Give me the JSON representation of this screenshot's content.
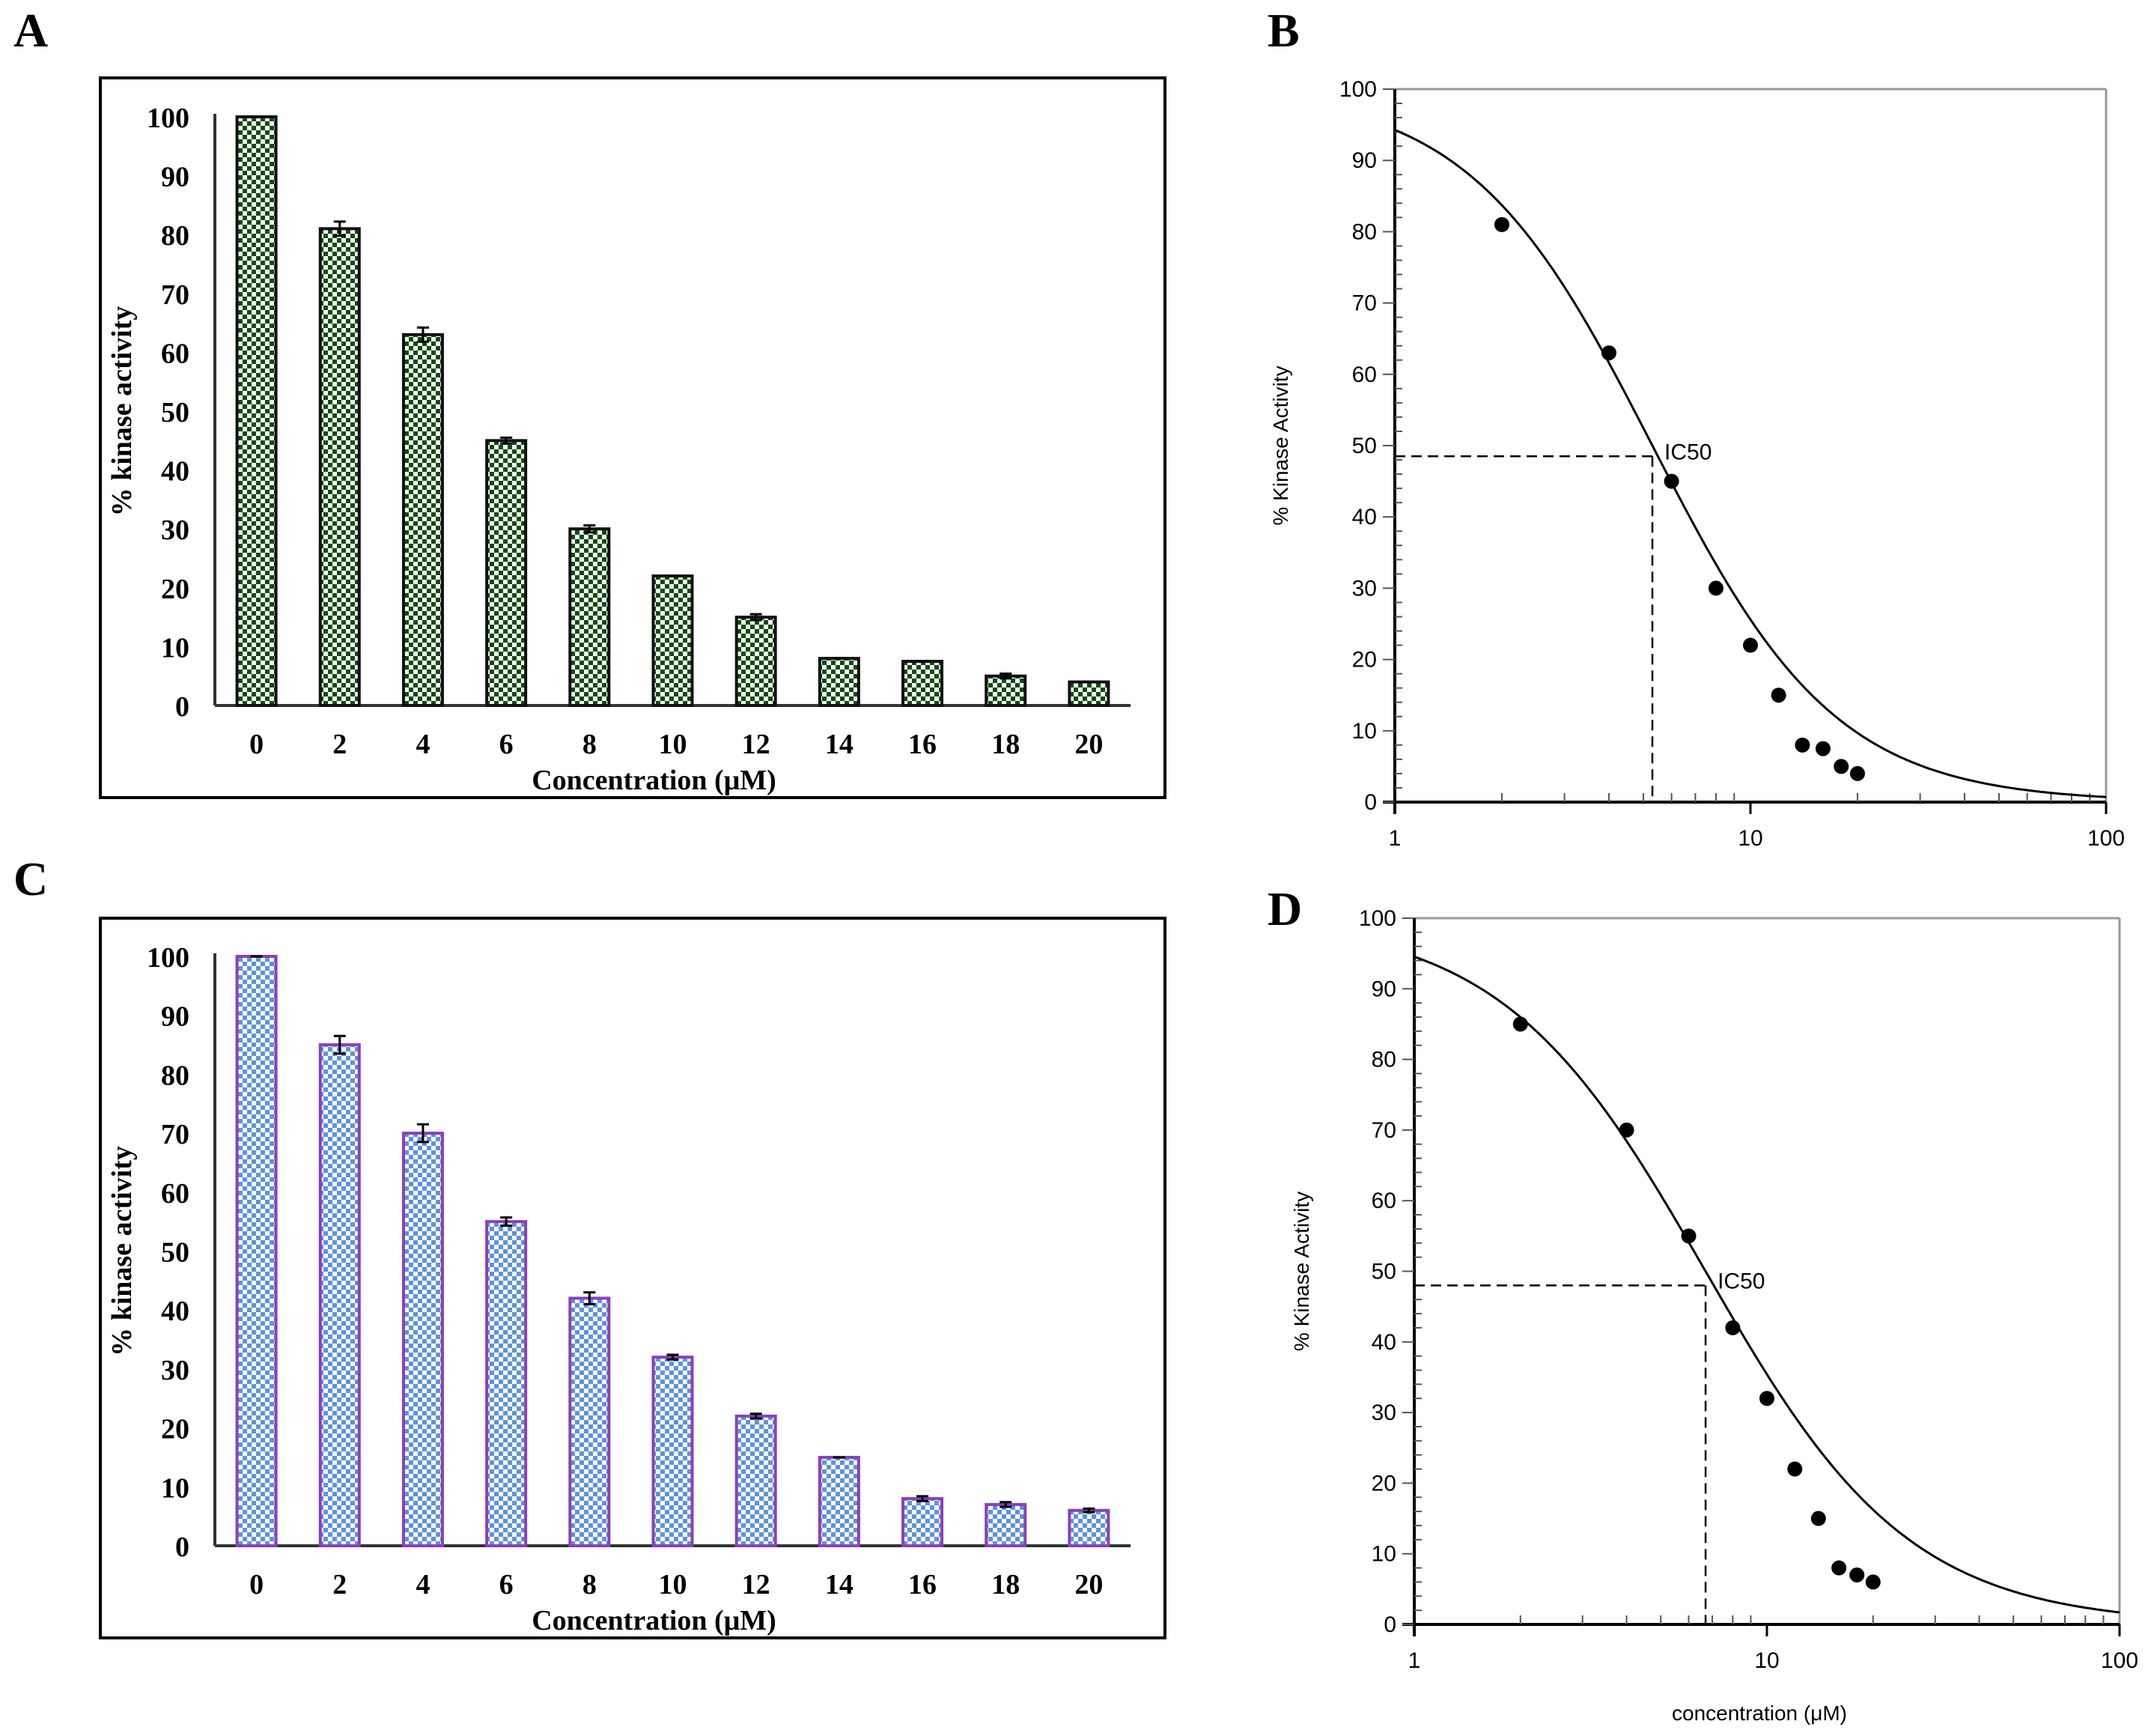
{
  "panel_labels": [
    "A",
    "B",
    "C",
    "D"
  ],
  "chart_data": [
    {
      "panel": "A",
      "type": "bar",
      "categories": [
        "0",
        "2",
        "4",
        "6",
        "8",
        "10",
        "12",
        "14",
        "16",
        "18",
        "20"
      ],
      "values": [
        100,
        81,
        63,
        45,
        30,
        22,
        15,
        8,
        7.5,
        5,
        4
      ],
      "errors": [
        0,
        1.2,
        1.2,
        0.5,
        0.6,
        0,
        0.5,
        0,
        0,
        0.4,
        0
      ],
      "xlabel": "Concentration  (μM)",
      "ylabel": "% kinase activity",
      "ylim": [
        0,
        100
      ],
      "yticks": [
        "0",
        "10",
        "20",
        "30",
        "40",
        "50",
        "60",
        "70",
        "80",
        "90",
        "100"
      ],
      "colors": {
        "fill": "#0b4d0b",
        "bg": "#ffffff",
        "border": "#111111"
      }
    },
    {
      "panel": "B",
      "type": "scatter",
      "x": [
        2,
        4,
        6,
        8,
        10,
        12,
        14,
        16,
        18,
        20
      ],
      "y": [
        81,
        63,
        45,
        30,
        22,
        15,
        8,
        7.5,
        5,
        4
      ],
      "fit": {
        "top": 100,
        "bottom": 0,
        "ic50": 5.3,
        "hill": 1.68
      },
      "ic50_marker": {
        "x": 5.3,
        "y": 48.5,
        "label": "IC50"
      },
      "xscale": "log",
      "xlim": [
        1,
        100
      ],
      "xticks": [
        "1",
        "10",
        "100"
      ],
      "ylim": [
        0,
        100
      ],
      "yticks": [
        "0",
        "10",
        "20",
        "30",
        "40",
        "50",
        "60",
        "70",
        "80",
        "90",
        "100"
      ],
      "xlabel": "",
      "ylabel": "% Kinase Activity"
    },
    {
      "panel": "C",
      "type": "bar",
      "categories": [
        "0",
        "2",
        "4",
        "6",
        "8",
        "10",
        "12",
        "14",
        "16",
        "18",
        "20"
      ],
      "values": [
        100,
        85,
        70,
        55,
        42,
        32,
        22,
        15,
        8,
        7,
        6
      ],
      "errors": [
        0,
        1.5,
        1.5,
        0.7,
        1,
        0.4,
        0.4,
        0,
        0.4,
        0.4,
        0.3
      ],
      "xlabel": "Concentration  (μM)",
      "ylabel": "% kinase activity",
      "ylim": [
        0,
        100
      ],
      "yticks": [
        "0",
        "10",
        "20",
        "30",
        "40",
        "50",
        "60",
        "70",
        "80",
        "90",
        "100"
      ],
      "colors": {
        "fill": "#5d92dc",
        "bg": "#ffffff",
        "border": "#8a3fbf"
      }
    },
    {
      "panel": "D",
      "type": "scatter",
      "x": [
        2,
        4,
        6,
        8,
        10,
        12,
        14,
        16,
        18,
        20
      ],
      "y": [
        85,
        70,
        55,
        42,
        32,
        22,
        15,
        8,
        7,
        6
      ],
      "fit": {
        "top": 100,
        "bottom": 0,
        "ic50": 6.7,
        "hill": 1.5
      },
      "ic50_marker": {
        "x": 6.7,
        "y": 48,
        "label": "IC50"
      },
      "xscale": "log",
      "xlim": [
        1,
        100
      ],
      "xticks": [
        "1",
        "10",
        "100"
      ],
      "ylim": [
        0,
        100
      ],
      "yticks": [
        "0",
        "10",
        "20",
        "30",
        "40",
        "50",
        "60",
        "70",
        "80",
        "90",
        "100"
      ],
      "xlabel": "concentration (μM)",
      "ylabel": "% Kinase Activity"
    }
  ]
}
